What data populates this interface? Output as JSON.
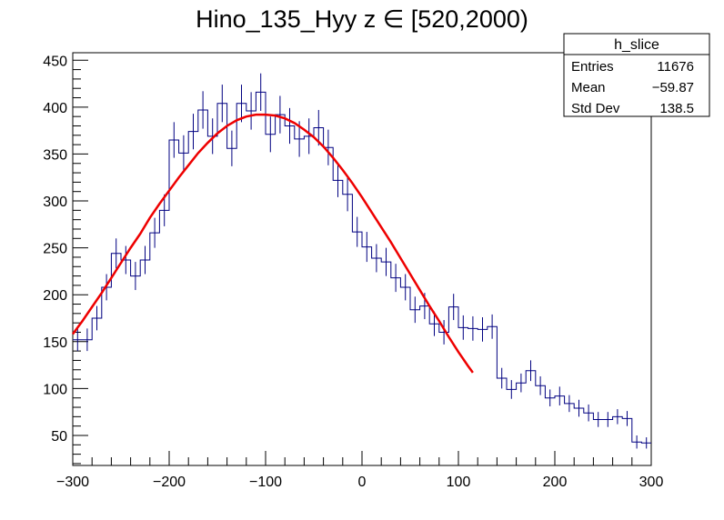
{
  "chart_data": {
    "type": "histogram",
    "title": "Hino_135_Hyy z  ∈ [520,2000)",
    "xlabel": "",
    "ylabel": "",
    "xlim": [
      -300,
      300
    ],
    "ylim": [
      18,
      458
    ],
    "x_ticks": [
      -300,
      -200,
      -100,
      0,
      100,
      200,
      300
    ],
    "x_tick_labels": [
      "−300",
      "−200",
      "−100",
      "0",
      "100",
      "200",
      "300"
    ],
    "y_ticks": [
      50,
      100,
      150,
      200,
      250,
      300,
      350,
      400,
      450
    ],
    "y_tick_labels": [
      "50",
      "100",
      "150",
      "200",
      "250",
      "300",
      "350",
      "400",
      "450"
    ],
    "histogram_color": "#000080",
    "fit_color": "#ee0000",
    "bins": {
      "bin_width": 10,
      "x_centers": [
        -295,
        -285,
        -275,
        -265,
        -255,
        -245,
        -235,
        -225,
        -215,
        -205,
        -195,
        -185,
        -175,
        -165,
        -155,
        -145,
        -135,
        -125,
        -115,
        -105,
        -95,
        -85,
        -75,
        -65,
        -55,
        -45,
        -35,
        -25,
        -15,
        -5,
        5,
        15,
        25,
        35,
        45,
        55,
        65,
        75,
        85,
        95,
        105,
        115,
        125,
        135,
        145,
        155,
        165,
        175,
        185,
        195,
        205,
        215,
        225,
        235,
        245,
        255,
        265,
        275,
        285,
        295
      ],
      "values": [
        152,
        152,
        175,
        208,
        244,
        237,
        220,
        237,
        266,
        290,
        365,
        351,
        374,
        397,
        369,
        404,
        356,
        404,
        396,
        416,
        371,
        392,
        380,
        366,
        369,
        378,
        357,
        322,
        307,
        267,
        251,
        239,
        235,
        218,
        208,
        184,
        188,
        169,
        160,
        187,
        165,
        164,
        163,
        166,
        111,
        99,
        106,
        119,
        103,
        90,
        92,
        84,
        79,
        74,
        67,
        67,
        70,
        68,
        43,
        42
      ],
      "errors": [
        12,
        12,
        13,
        14,
        16,
        15,
        15,
        15,
        16,
        17,
        19,
        19,
        19,
        20,
        19,
        20,
        19,
        20,
        20,
        20,
        19,
        20,
        19,
        19,
        19,
        19,
        19,
        18,
        18,
        16,
        16,
        15,
        15,
        15,
        14,
        14,
        14,
        13,
        13,
        14,
        13,
        13,
        13,
        13,
        11,
        10,
        10,
        11,
        10,
        9,
        10,
        9,
        9,
        9,
        8,
        8,
        8,
        8,
        7,
        6
      ]
    },
    "fit": {
      "type": "gaussian",
      "x_range": [
        -300,
        115
      ],
      "x": [
        -300,
        -290,
        -280,
        -270,
        -260,
        -250,
        -240,
        -230,
        -220,
        -210,
        -200,
        -190,
        -180,
        -170,
        -160,
        -150,
        -140,
        -130,
        -120,
        -110,
        -100,
        -90,
        -80,
        -70,
        -60,
        -50,
        -40,
        -30,
        -20,
        -10,
        0,
        10,
        20,
        30,
        40,
        50,
        60,
        70,
        80,
        90,
        100,
        110,
        115
      ],
      "y": [
        158,
        172,
        187,
        202,
        218,
        234,
        250,
        265,
        282,
        297,
        311,
        325,
        338,
        351,
        362,
        372,
        380,
        386,
        390,
        392,
        392,
        391,
        388,
        383,
        376,
        368,
        358,
        346,
        333,
        319,
        304,
        288,
        272,
        256,
        239,
        222,
        205,
        188,
        172,
        155,
        139,
        124,
        117
      ]
    },
    "stats_box": {
      "title": "h_slice",
      "rows": [
        {
          "label": "Entries",
          "value": "11676"
        },
        {
          "label": "Mean",
          "value": "−59.87"
        },
        {
          "label": "Std Dev",
          "value": "138.5"
        }
      ]
    }
  }
}
